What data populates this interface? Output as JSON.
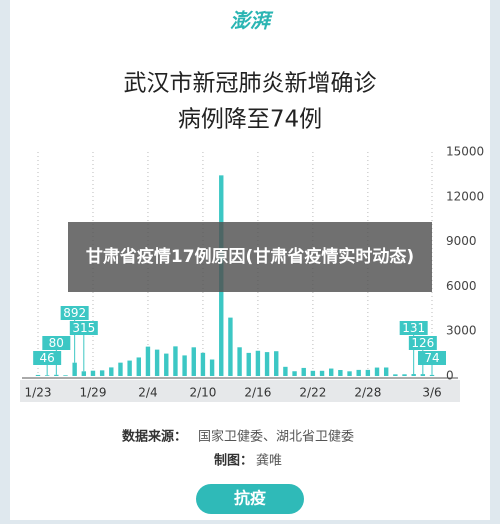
{
  "logo": "澎湃",
  "chart_data": {
    "type": "bar",
    "title_lines": [
      "武汉市新冠肺炎新增确诊",
      "病例降至74例"
    ],
    "categories": [
      "1/23",
      null,
      null,
      null,
      null,
      null,
      "1/29",
      null,
      null,
      null,
      null,
      null,
      "2/4",
      null,
      null,
      null,
      null,
      null,
      "2/10",
      null,
      null,
      null,
      null,
      null,
      "2/16",
      null,
      null,
      null,
      null,
      null,
      "2/22",
      null,
      null,
      null,
      null,
      null,
      "2/28",
      null,
      null,
      null,
      null,
      null,
      null,
      "3/6"
    ],
    "values": [
      70,
      46,
      80,
      46,
      892,
      315,
      356,
      378,
      576,
      894,
      1033,
      1242,
      1967,
      1766,
      1501,
      1985,
      1379,
      1921,
      1552,
      1104,
      13436,
      3910,
      1923,
      1548,
      1690,
      1600,
      1660,
      615,
      319,
      541,
      348,
      348,
      499,
      401,
      313,
      409,
      410,
      565,
      570,
      111,
      114,
      131,
      126,
      74
    ],
    "value_labels": [
      null,
      "46",
      "80",
      null,
      "892",
      "315",
      null,
      null,
      null,
      null,
      null,
      null,
      null,
      null,
      null,
      null,
      null,
      null,
      null,
      null,
      null,
      null,
      null,
      null,
      null,
      null,
      null,
      null,
      null,
      null,
      null,
      null,
      null,
      null,
      null,
      null,
      null,
      null,
      null,
      null,
      null,
      "131",
      "126",
      "74"
    ],
    "color": "#3cc7c4",
    "ylim": [
      0,
      15000
    ],
    "yticks": [
      0,
      3000,
      6000,
      9000,
      12000,
      15000
    ],
    "grid": true
  },
  "overlay": "甘肃省疫情17例原因(甘肃省疫情实时动态)",
  "source_label": "数据来源：",
  "source": "国家卫健委、湖北省卫健委",
  "maker_label": "制图：",
  "maker": "龚唯",
  "footer": "抗疫"
}
